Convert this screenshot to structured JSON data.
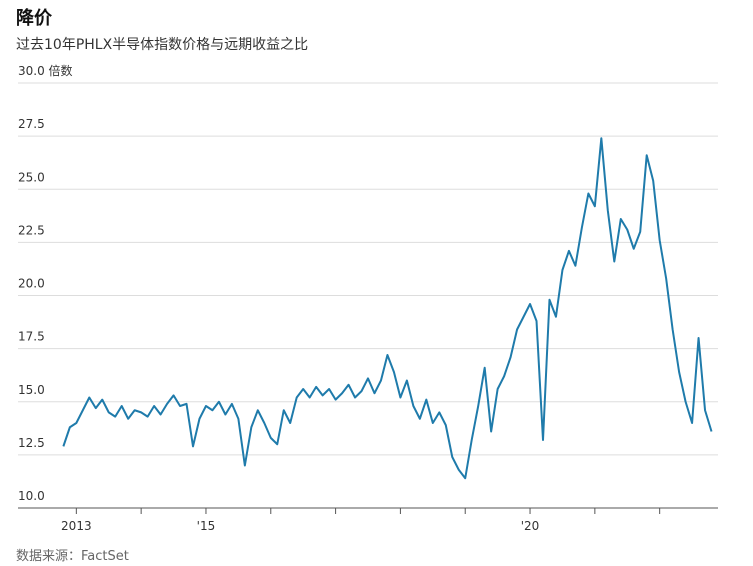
{
  "chart_data": {
    "type": "line",
    "title": "降价",
    "subtitle": "过去10年PHLX半导体指数价格与远期收益之比",
    "source": "数据来源：FactSet",
    "color": "#1f7bab",
    "grid": true,
    "xlim": [
      2012.1,
      2022.9
    ],
    "xticks": [
      {
        "value": 2013,
        "label": "2013"
      },
      {
        "value": 2015,
        "label": "'15"
      },
      {
        "value": 2020,
        "label": "'20"
      }
    ],
    "xminor_ticks": [
      2014,
      2016,
      2017,
      2018,
      2019,
      2021,
      2022
    ],
    "ylim": [
      10,
      30
    ],
    "yticks": [
      {
        "value": 10,
        "label": "10.0"
      },
      {
        "value": 12.5,
        "label": "12.5"
      },
      {
        "value": 15,
        "label": "15.0"
      },
      {
        "value": 17.5,
        "label": "17.5"
      },
      {
        "value": 20,
        "label": "20.0"
      },
      {
        "value": 22.5,
        "label": "22.5"
      },
      {
        "value": 25,
        "label": "25.0"
      },
      27.5,
      {
        "value": 30,
        "label": "30.0 倍数"
      }
    ],
    "x": [
      2012.8,
      2012.9,
      2013.0,
      2013.1,
      2013.2,
      2013.3,
      2013.4,
      2013.5,
      2013.6,
      2013.7,
      2013.8,
      2013.9,
      2014.0,
      2014.1,
      2014.2,
      2014.3,
      2014.4,
      2014.5,
      2014.6,
      2014.7,
      2014.8,
      2014.9,
      2015.0,
      2015.1,
      2015.2,
      2015.3,
      2015.4,
      2015.5,
      2015.6,
      2015.7,
      2015.8,
      2015.9,
      2016.0,
      2016.1,
      2016.2,
      2016.3,
      2016.4,
      2016.5,
      2016.6,
      2016.7,
      2016.8,
      2016.9,
      2017.0,
      2017.1,
      2017.2,
      2017.3,
      2017.4,
      2017.5,
      2017.6,
      2017.7,
      2017.8,
      2017.9,
      2018.0,
      2018.1,
      2018.2,
      2018.3,
      2018.4,
      2018.5,
      2018.6,
      2018.7,
      2018.8,
      2018.9,
      2019.0,
      2019.1,
      2019.2,
      2019.3,
      2019.4,
      2019.5,
      2019.6,
      2019.7,
      2019.8,
      2019.9,
      2020.0,
      2020.1,
      2020.2,
      2020.3,
      2020.4,
      2020.5,
      2020.6,
      2020.7,
      2020.8,
      2020.9,
      2021.0,
      2021.1,
      2021.2,
      2021.3,
      2021.4,
      2021.5,
      2021.6,
      2021.7,
      2021.8,
      2021.9,
      2022.0,
      2022.1,
      2022.2,
      2022.3,
      2022.4,
      2022.5,
      2022.6,
      2022.7,
      2022.8
    ],
    "values": [
      12.9,
      13.8,
      14.0,
      14.6,
      15.2,
      14.7,
      15.1,
      14.5,
      14.3,
      14.8,
      14.2,
      14.6,
      14.5,
      14.3,
      14.8,
      14.4,
      14.9,
      15.3,
      14.8,
      14.9,
      12.9,
      14.2,
      14.8,
      14.6,
      15.0,
      14.4,
      14.9,
      14.2,
      12.0,
      13.8,
      14.6,
      14.0,
      13.3,
      13.0,
      14.6,
      14.0,
      15.2,
      15.6,
      15.2,
      15.7,
      15.3,
      15.6,
      15.1,
      15.4,
      15.8,
      15.2,
      15.5,
      16.1,
      15.4,
      16.0,
      17.2,
      16.4,
      15.2,
      16.0,
      14.8,
      14.2,
      15.1,
      14.0,
      14.5,
      13.9,
      12.4,
      11.8,
      11.4,
      13.2,
      14.8,
      16.6,
      13.6,
      15.6,
      16.2,
      17.1,
      18.4,
      19.0,
      19.6,
      18.8,
      13.2,
      19.8,
      19.0,
      21.2,
      22.1,
      21.4,
      23.2,
      24.8,
      24.2,
      27.4,
      24.0,
      21.6,
      23.6,
      23.1,
      22.2,
      23.0,
      26.6,
      25.4,
      22.6,
      20.8,
      18.4,
      16.4,
      15.0,
      14.0,
      18.0,
      14.6,
      13.6
    ]
  }
}
